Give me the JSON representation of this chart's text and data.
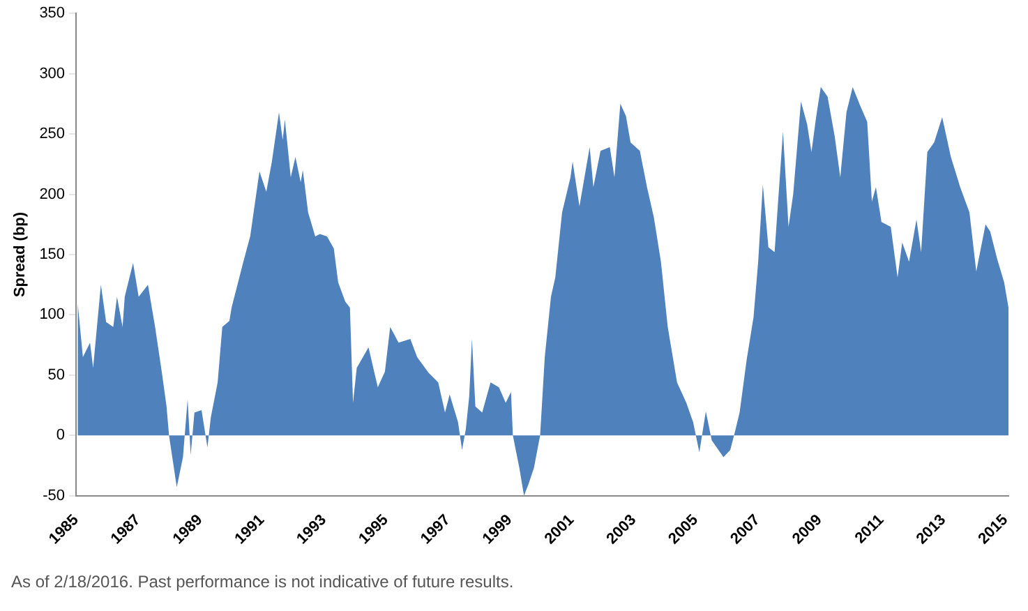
{
  "chart_data": {
    "type": "area",
    "ylabel": "Spread (bp)",
    "annotations": [
      "As of 2/18/2016. Past performance is not indicative of future results."
    ],
    "x": [
      1985.05,
      1985.22,
      1985.45,
      1985.55,
      1985.8,
      1985.97,
      1986.2,
      1986.32,
      1986.5,
      1986.57,
      1986.84,
      1987.02,
      1987.32,
      1987.55,
      1987.77,
      1987.92,
      1988.0,
      1988.25,
      1988.45,
      1988.6,
      1988.7,
      1988.82,
      1989.05,
      1989.24,
      1989.35,
      1989.57,
      1989.72,
      1989.95,
      1990.02,
      1990.4,
      1990.62,
      1990.92,
      1991.14,
      1991.32,
      1991.55,
      1991.67,
      1991.74,
      1991.93,
      1992.08,
      1992.25,
      1992.32,
      1992.49,
      1992.72,
      1992.87,
      1993.1,
      1993.32,
      1993.46,
      1993.69,
      1993.84,
      1993.94,
      1994.06,
      1994.44,
      1994.74,
      1994.97,
      1995.14,
      1995.41,
      1995.79,
      1996.01,
      1996.38,
      1996.69,
      1996.91,
      1997.06,
      1997.33,
      1997.46,
      1997.58,
      1997.69,
      1997.78,
      1997.89,
      1998.11,
      1998.38,
      1998.65,
      1998.87,
      1999.04,
      1999.1,
      1999.31,
      1999.46,
      1999.61,
      1999.78,
      1999.98,
      2000.13,
      2000.33,
      2000.47,
      2000.69,
      2000.96,
      2001.03,
      2001.25,
      2001.58,
      2001.7,
      2001.93,
      2002.23,
      2002.38,
      2002.57,
      2002.75,
      2002.9,
      2003.2,
      2003.43,
      2003.65,
      2003.88,
      2004.1,
      2004.4,
      2004.7,
      2004.92,
      2005.12,
      2005.33,
      2005.52,
      2005.9,
      2006.12,
      2006.27,
      2006.42,
      2006.65,
      2006.87,
      2007.02,
      2007.17,
      2007.35,
      2007.55,
      2007.82,
      2008.0,
      2008.15,
      2008.4,
      2008.6,
      2008.74,
      2008.89,
      2009.04,
      2009.26,
      2009.49,
      2009.67,
      2009.87,
      2010.07,
      2010.32,
      2010.54,
      2010.69,
      2010.82,
      2011.0,
      2011.3,
      2011.52,
      2011.67,
      2011.89,
      2012.13,
      2012.28,
      2012.48,
      2012.7,
      2012.96,
      2013.24,
      2013.54,
      2013.84,
      2014.06,
      2014.36,
      2014.51,
      2014.74,
      2014.96,
      2015.1
    ],
    "series": [
      {
        "color": "#4f81bd",
        "values": [
          110,
          65,
          77,
          56,
          125,
          94,
          90,
          115,
          90,
          115,
          143,
          115,
          125,
          90,
          52,
          24,
          0,
          -43,
          -18,
          30,
          -16,
          19,
          21,
          -10,
          15,
          44,
          90,
          95,
          106,
          144,
          165,
          219,
          202,
          227,
          268,
          245,
          262,
          214,
          231,
          210,
          220,
          185,
          165,
          167,
          165,
          155,
          127,
          111,
          106,
          27,
          56,
          73,
          40,
          53,
          90,
          77,
          80,
          65,
          52,
          44,
          19,
          34,
          11,
          -12,
          5,
          32,
          80,
          24,
          19,
          44,
          40,
          27,
          36,
          0,
          -27,
          -50,
          -40,
          -27,
          0,
          65,
          115,
          131,
          185,
          214,
          227,
          190,
          239,
          206,
          236,
          239,
          214,
          275,
          265,
          243,
          236,
          206,
          181,
          144,
          90,
          44,
          27,
          11,
          -14,
          20,
          -4,
          -18,
          -12,
          3,
          19,
          63,
          98,
          144,
          208,
          156,
          152,
          252,
          173,
          200,
          277,
          258,
          235,
          264,
          289,
          281,
          248,
          214,
          268,
          289,
          273,
          260,
          194,
          206,
          177,
          173,
          131,
          160,
          144,
          179,
          152,
          235,
          243,
          264,
          231,
          206,
          185,
          136,
          175,
          169,
          146,
          127,
          106
        ]
      }
    ],
    "xlim": [
      1985,
      2015.1
    ],
    "xticks": [
      1985,
      1987,
      1989,
      1991,
      1993,
      1995,
      1997,
      1999,
      2001,
      2003,
      2005,
      2007,
      2009,
      2011,
      2013,
      2015
    ],
    "ylim": [
      -50,
      350
    ],
    "yticks": [
      -50,
      0,
      50,
      100,
      150,
      200,
      250,
      300,
      350
    ],
    "grid": false,
    "legend": false
  }
}
